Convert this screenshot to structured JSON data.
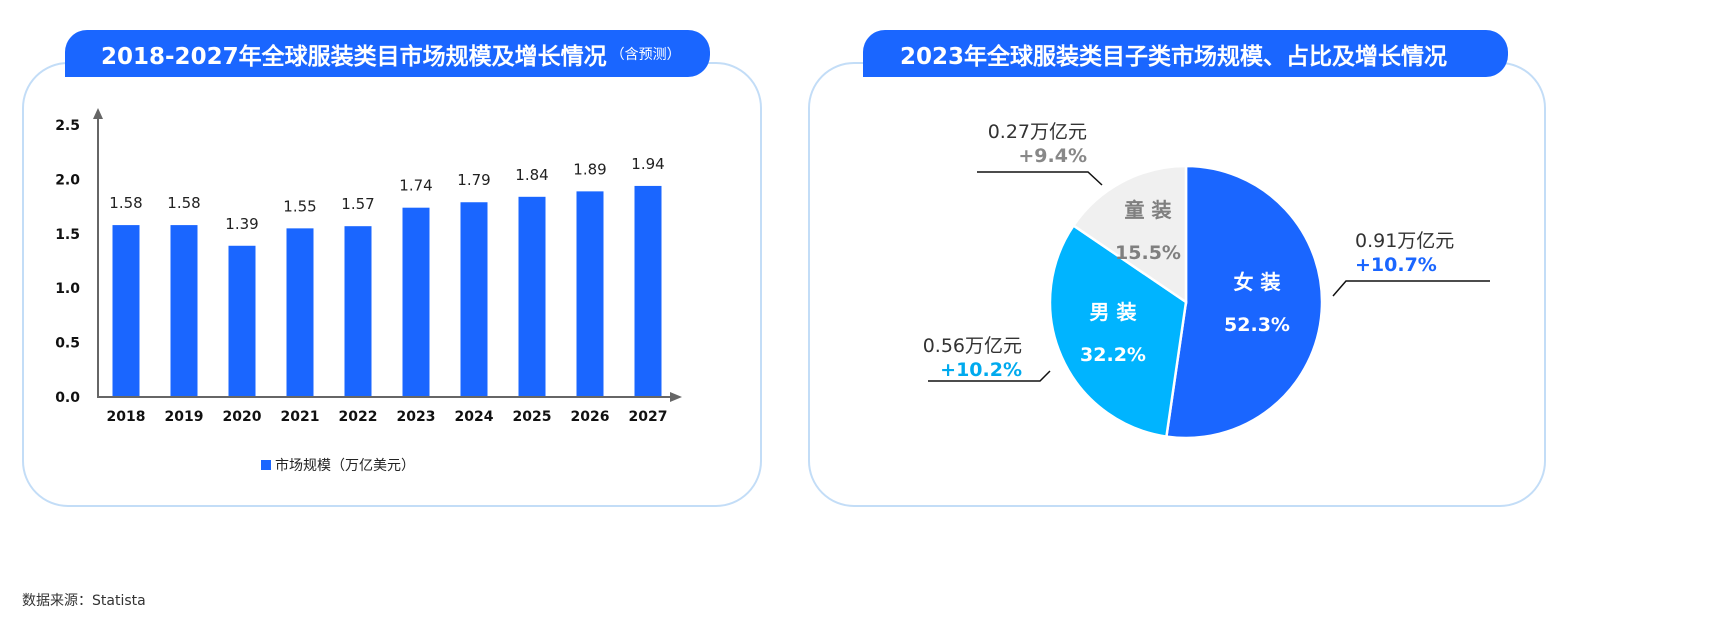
{
  "left_panel": {
    "title": "2018-2027年全球服装类目市场规模及增长情况",
    "title_note": "（含预测）",
    "legend_label": "市场规模（万亿美元）"
  },
  "right_panel": {
    "title": "2023年全球服装类目子类市场规模、占比及增长情况"
  },
  "source": "数据来源：Statista",
  "colors": {
    "primary_blue": "#1a66ff",
    "light_blue": "#00b4ff",
    "light_gray": "#f0f0f0",
    "panel_border": "#c3ddf7",
    "axis": "#666666"
  },
  "chart_data": [
    {
      "type": "bar",
      "title": "2018-2027年全球服装类目市场规模及增长情况（含预测）",
      "categories": [
        "2018",
        "2019",
        "2020",
        "2021",
        "2022",
        "2023",
        "2024",
        "2025",
        "2026",
        "2027"
      ],
      "series": [
        {
          "name": "市场规模（万亿美元）",
          "values": [
            1.58,
            1.58,
            1.39,
            1.55,
            1.57,
            1.74,
            1.79,
            1.84,
            1.89,
            1.94
          ],
          "labels": [
            "1.58",
            "1.58",
            "1.39",
            "1.55",
            "1.57",
            "1.74",
            "1.79",
            "1.84",
            "1.89",
            "1.94"
          ]
        }
      ],
      "yticks": [
        "0.0",
        "0.5",
        "1.0",
        "1.5",
        "2.0",
        "2.5"
      ],
      "ylim": [
        0,
        2.5
      ],
      "xlabel": "",
      "ylabel": "",
      "grid": false,
      "legend_position": "bottom"
    },
    {
      "type": "pie",
      "title": "2023年全球服装类目子类市场规模、占比及增长情况",
      "slices": [
        {
          "name": "女 装",
          "percent": 52.3,
          "percent_label": "52.3%",
          "value_label": "0.91万亿元",
          "growth_label": "+10.7%",
          "color": "#1a66ff",
          "growth_color": "#1a66ff",
          "text_color": "#ffffff"
        },
        {
          "name": "男 装",
          "percent": 32.2,
          "percent_label": "32.2%",
          "value_label": "0.56万亿元",
          "growth_label": "+10.2%",
          "color": "#00b4ff",
          "growth_color": "#00aaee",
          "text_color": "#ffffff"
        },
        {
          "name": "童 装",
          "percent": 15.5,
          "percent_label": "15.5%",
          "value_label": "0.27万亿元",
          "growth_label": "+9.4%",
          "color": "#f0f0f0",
          "growth_color": "#888888",
          "text_color": "#7f7f7f"
        }
      ]
    }
  ]
}
